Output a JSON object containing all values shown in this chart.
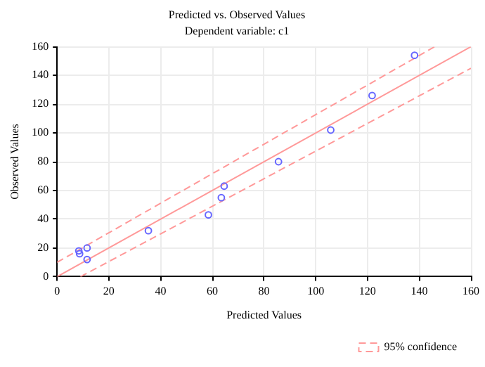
{
  "chart_data": {
    "type": "scatter",
    "title": "Predicted vs. Observed Values",
    "subtitle": "Dependent variable: c1",
    "xlabel": "Predicted Values",
    "ylabel": "Observed Values",
    "xlim": [
      0,
      160
    ],
    "ylim": [
      0,
      160
    ],
    "xticks": [
      0,
      20,
      40,
      60,
      80,
      100,
      120,
      140,
      160
    ],
    "yticks": [
      0,
      20,
      40,
      60,
      80,
      100,
      120,
      140,
      160
    ],
    "grid": true,
    "legend": "bottom right",
    "marker": "circle",
    "series": [
      {
        "color": "#6666ff",
        "x": [
          8.4,
          8.7,
          11.6,
          11.6,
          35.3,
          58.5,
          63.5,
          64.6,
          85.6,
          105.8,
          121.8,
          138.2
        ],
        "values": [
          18,
          16,
          20,
          12,
          32,
          43,
          55,
          63,
          80,
          102,
          126,
          154
        ]
      },
      {
        "type": "line",
        "color": "#ff9999",
        "line_style": "solid",
        "marker": "none",
        "x": [
          0,
          160
        ],
        "values": [
          0,
          160
        ]
      },
      {
        "type": "line",
        "name": "95% confidence",
        "color": "#ff9999",
        "line_style": "dashed",
        "marker": "none",
        "x": [
          0,
          146
        ],
        "values": [
          10,
          160
        ]
      },
      {
        "type": "line",
        "color": "#ff9999",
        "line_style": "dashed",
        "marker": "none",
        "x": [
          9,
          160
        ],
        "values": [
          0,
          145
        ]
      }
    ]
  }
}
